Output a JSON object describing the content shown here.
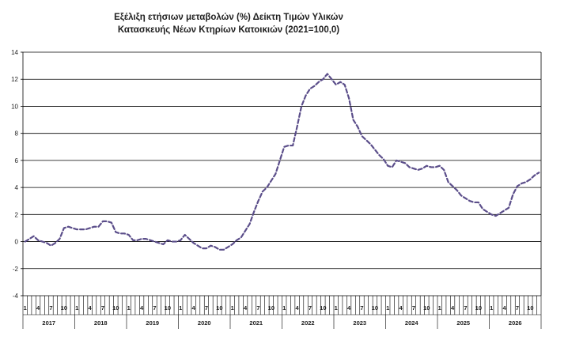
{
  "chart_data": {
    "type": "line",
    "title_line1": "Εξέλιξη ετήσιων μεταβολών (%) Δείκτη Τιμών Υλικών",
    "title_line2": "Κατασκευής Νέων Κτηρίων Κατοικιών (2021=100,0)",
    "xlabel": "",
    "ylabel": "",
    "ylim": [
      -4,
      14
    ],
    "yticks": [
      -4,
      -2,
      0,
      2,
      4,
      6,
      8,
      10,
      12,
      14
    ],
    "grid": true,
    "month_tick_labels": [
      "1",
      "4",
      "7",
      "10"
    ],
    "years": [
      "2017",
      "2018",
      "2019",
      "2020",
      "2021",
      "2022",
      "2023",
      "2024",
      "2025",
      "2026"
    ],
    "series": [
      {
        "color": "#5b4e8a",
        "values": [
          0.0,
          0.2,
          0.4,
          0.1,
          0.0,
          -0.1,
          -0.3,
          -0.1,
          0.2,
          1.0,
          1.1,
          1.0,
          0.9,
          0.9,
          0.9,
          1.0,
          1.1,
          1.1,
          1.5,
          1.5,
          1.4,
          0.7,
          0.6,
          0.6,
          0.5,
          0.1,
          0.1,
          0.2,
          0.2,
          0.1,
          0.0,
          -0.1,
          -0.2,
          0.1,
          0.0,
          0.0,
          0.1,
          0.5,
          0.2,
          -0.1,
          -0.3,
          -0.5,
          -0.5,
          -0.3,
          -0.4,
          -0.6,
          -0.6,
          -0.4,
          -0.2,
          0.1,
          0.3,
          0.8,
          1.3,
          2.2,
          3.0,
          3.7,
          4.0,
          4.5,
          5.0,
          6.0,
          7.0,
          7.1,
          7.1,
          8.5,
          10.0,
          10.8,
          11.3,
          11.5,
          11.8,
          12.0,
          12.4,
          12.0,
          11.6,
          11.8,
          11.6,
          10.6,
          9.0,
          8.5,
          7.8,
          7.5,
          7.2,
          6.8,
          6.4,
          6.1,
          5.6,
          5.5,
          6.0,
          5.9,
          5.8,
          5.5,
          5.4,
          5.3,
          5.4,
          5.6,
          5.5,
          5.5,
          5.6,
          5.3,
          4.4,
          4.1,
          3.8,
          3.4,
          3.2,
          3.0,
          2.9,
          2.9,
          2.4,
          2.2,
          2.0,
          1.9,
          2.1,
          2.3,
          2.5,
          3.5,
          4.1,
          4.3,
          4.4,
          4.6,
          4.9,
          5.1
        ]
      }
    ]
  }
}
